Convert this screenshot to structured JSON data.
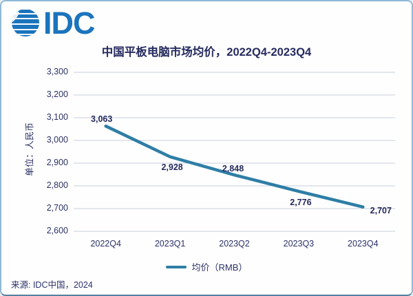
{
  "logo": {
    "brand": "IDC"
  },
  "header": {
    "title": "中国平板电脑市场均价，2022Q4-2023Q4"
  },
  "legend": {
    "label": "均价（RMB）"
  },
  "source": {
    "text": "来源: IDC中国，2024"
  },
  "colors": {
    "line": "#2e7ea6",
    "gridline": "#c9cdde",
    "text_navy": "#2b3166",
    "data_label": "#242a5c",
    "logo_blue": "#1b74bc",
    "frame_border": "#8fb9d6"
  },
  "chart_data": {
    "type": "line",
    "title": "中国平板电脑市场均价，2022Q4-2023Q4",
    "categories": [
      "2022Q4",
      "2023Q1",
      "2023Q2",
      "2023Q3",
      "2023Q4"
    ],
    "series": [
      {
        "name": "均价（RMB）",
        "values": [
          3063,
          2928,
          2848,
          2776,
          2707
        ]
      }
    ],
    "data_labels": [
      "3,063",
      "2,928",
      "2,848",
      "2,776",
      "2,707"
    ],
    "xlabel": "",
    "ylabel": "单位：人民币",
    "ylim": [
      2600,
      3300
    ],
    "ytick_step": 100,
    "yticks": [
      "3,300",
      "3,200",
      "3,100",
      "3,000",
      "2,900",
      "2,800",
      "2,700",
      "2,600"
    ],
    "grid": true,
    "legend_position": "bottom"
  }
}
